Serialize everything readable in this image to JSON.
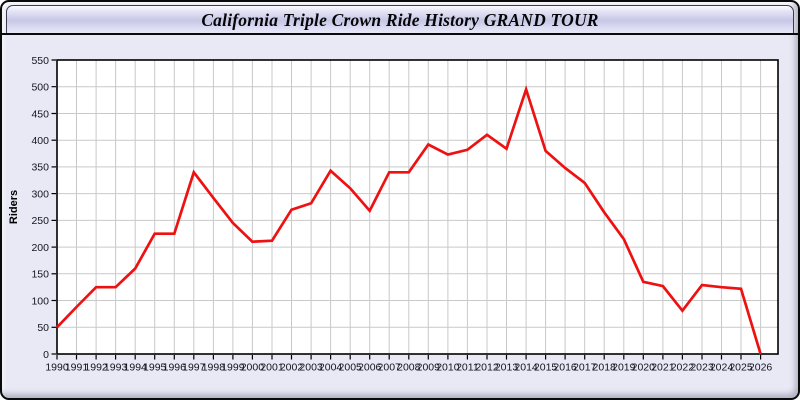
{
  "window": {
    "title": "California Triple Crown Ride History GRAND TOUR"
  },
  "chart_data": {
    "type": "line",
    "title": "California Triple Crown Ride History GRAND TOUR",
    "xlabel": "",
    "ylabel": "Riders",
    "x": [
      1990,
      1991,
      1992,
      1993,
      1994,
      1995,
      1996,
      1997,
      1998,
      1999,
      2000,
      2001,
      2002,
      2003,
      2004,
      2005,
      2006,
      2007,
      2008,
      2009,
      2010,
      2011,
      2012,
      2013,
      2014,
      2015,
      2016,
      2017,
      2018,
      2019,
      2020,
      2021,
      2022,
      2023,
      2024,
      2025,
      2026
    ],
    "series": [
      {
        "name": "Riders",
        "color": "#ee1111",
        "values": [
          50,
          88,
          125,
          125,
          160,
          225,
          225,
          340,
          292,
          245,
          210,
          212,
          270,
          282,
          343,
          310,
          268,
          340,
          340,
          392,
          373,
          382,
          410,
          384,
          495,
          380,
          348,
          320,
          265,
          215,
          135,
          127,
          81,
          129,
          125,
          122,
          0
        ]
      }
    ],
    "ylim": [
      0,
      550
    ],
    "ytick_step": 50,
    "axis_ranges": {
      "x": [
        1990,
        2026
      ]
    },
    "grid": true,
    "legend_position": "none"
  },
  "colors": {
    "page_bg": "#e9e9f6",
    "outer_border": "#0a0a0a",
    "plot_bg": "#ffffff",
    "grid": "#c9c9c9",
    "frame": "#000000",
    "line": "#ee1111",
    "axis_text": "#15151f"
  }
}
